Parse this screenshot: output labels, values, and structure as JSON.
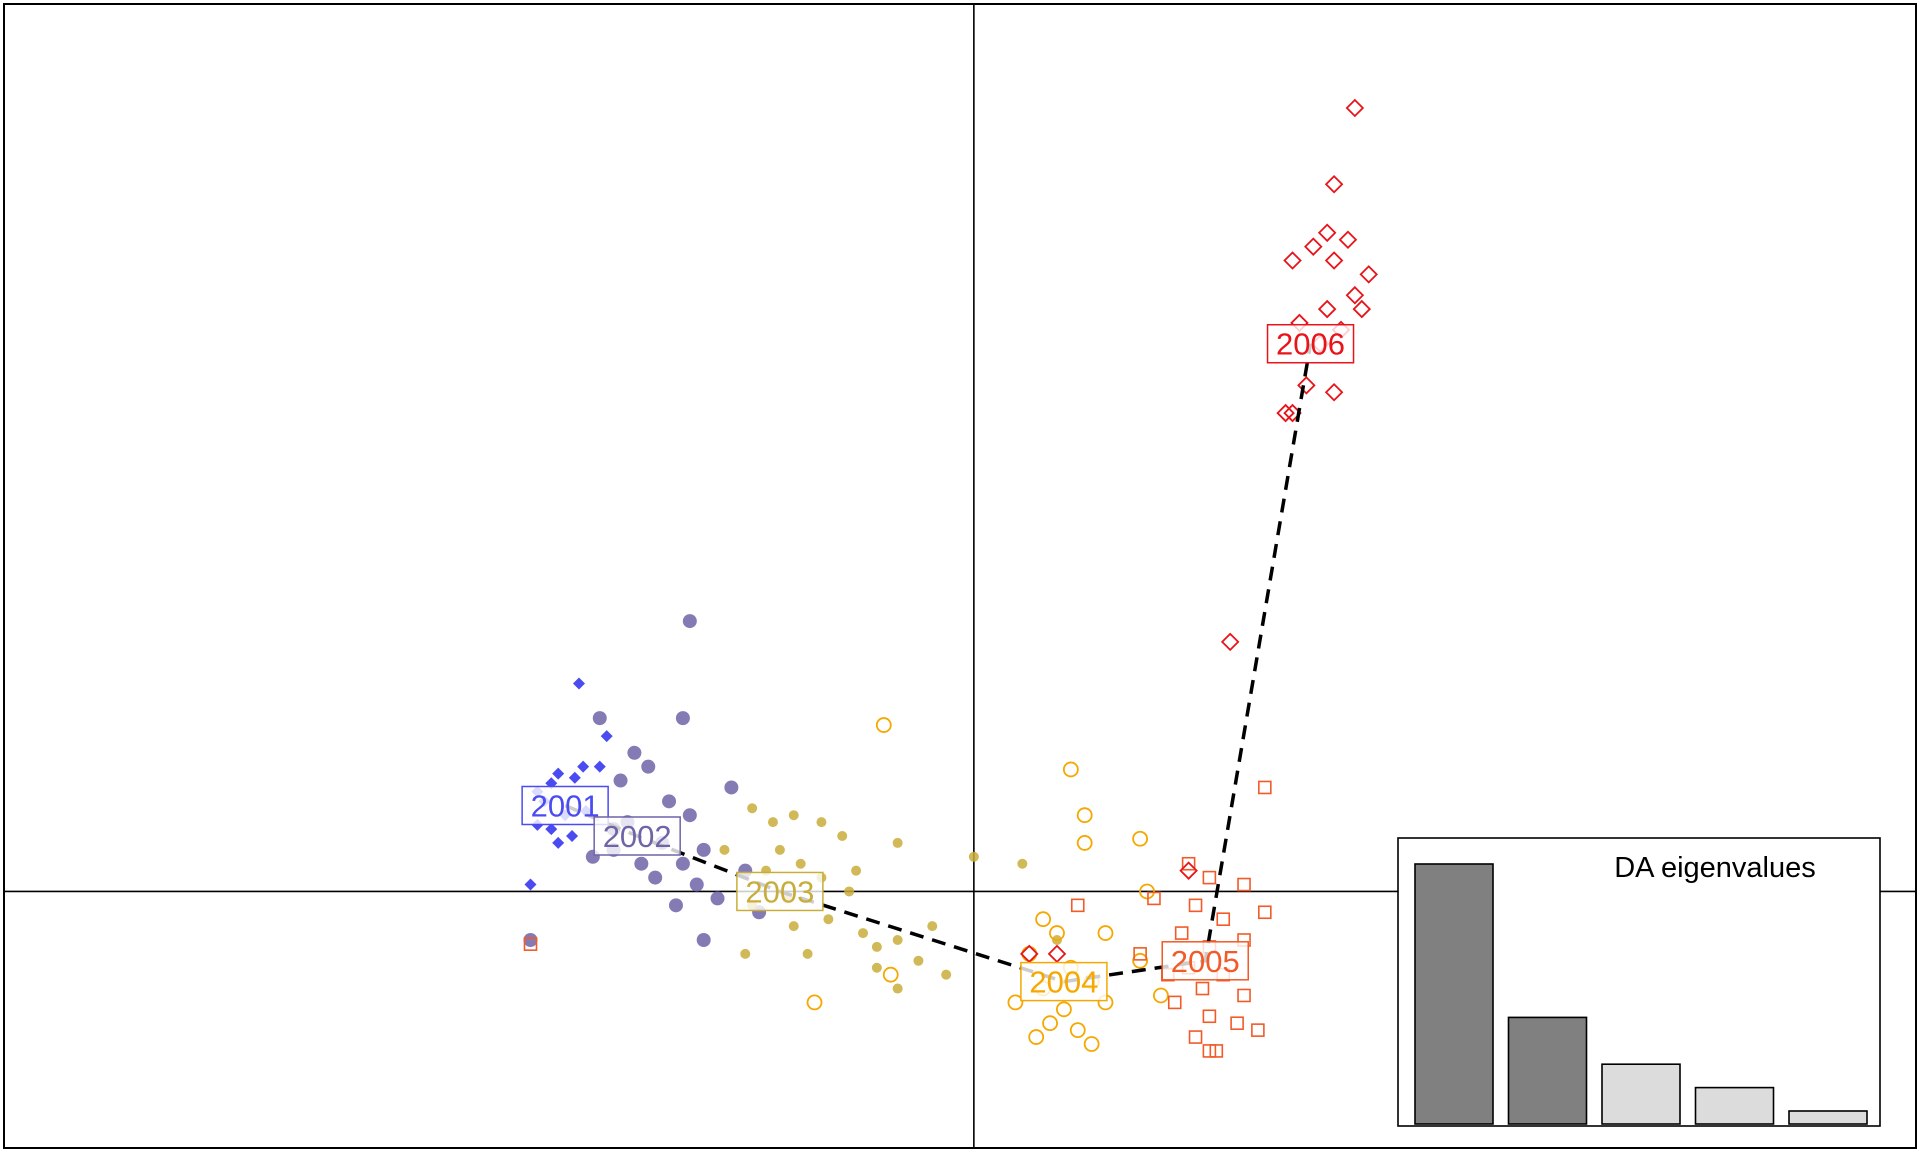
{
  "chart_data": {
    "type": "scatter",
    "title": "",
    "xlabel": "",
    "ylabel": "",
    "xlim": [
      -7.0,
      6.8
    ],
    "ylim": [
      -1.85,
      6.4
    ],
    "grid": false,
    "axes_lines": {
      "x": 0,
      "y": 0
    },
    "trajectory_order": [
      "2001",
      "2002",
      "2003",
      "2004",
      "2005",
      "2006"
    ],
    "series": [
      {
        "name": "2001",
        "color": "#4b4bf2",
        "marker": "diamond-filled",
        "centroid": [
          -2.95,
          0.62
        ],
        "points": [
          [
            -2.85,
            1.5
          ],
          [
            -2.65,
            1.12
          ],
          [
            -2.82,
            0.9
          ],
          [
            -3.0,
            0.85
          ],
          [
            -2.88,
            0.82
          ],
          [
            -3.05,
            0.78
          ],
          [
            -3.15,
            0.72
          ],
          [
            -2.7,
            0.9
          ],
          [
            -3.1,
            0.65
          ],
          [
            -2.95,
            0.55
          ],
          [
            -3.05,
            0.45
          ],
          [
            -2.9,
            0.4
          ],
          [
            -3.15,
            0.48
          ],
          [
            -2.8,
            0.58
          ],
          [
            -3.0,
            0.35
          ],
          [
            -3.2,
            0.05
          ]
        ]
      },
      {
        "name": "2002",
        "color": "#6f64a8",
        "marker": "circle-filled",
        "centroid": [
          -2.43,
          0.4
        ],
        "points": [
          [
            -2.05,
            1.95
          ],
          [
            -2.7,
            1.25
          ],
          [
            -2.1,
            1.25
          ],
          [
            -2.45,
            1.0
          ],
          [
            -2.35,
            0.9
          ],
          [
            -2.55,
            0.8
          ],
          [
            -1.75,
            0.75
          ],
          [
            -2.2,
            0.65
          ],
          [
            -2.05,
            0.55
          ],
          [
            -2.5,
            0.5
          ],
          [
            -2.6,
            0.3
          ],
          [
            -2.25,
            0.35
          ],
          [
            -2.3,
            0.1
          ],
          [
            -2.1,
            0.2
          ],
          [
            -1.95,
            0.3
          ],
          [
            -2.0,
            0.05
          ],
          [
            -1.85,
            -0.05
          ],
          [
            -1.65,
            0.15
          ],
          [
            -2.4,
            0.2
          ],
          [
            -2.15,
            -0.1
          ],
          [
            -1.95,
            -0.35
          ],
          [
            -3.2,
            -0.35
          ],
          [
            -2.75,
            0.25
          ],
          [
            -2.6,
            0.45
          ],
          [
            -1.55,
            -0.15
          ]
        ]
      },
      {
        "name": "2003",
        "color": "#c9ad3a",
        "marker": "circle-filled",
        "centroid": [
          -1.4,
          0.0
        ],
        "points": [
          [
            -1.6,
            0.6
          ],
          [
            -1.3,
            0.55
          ],
          [
            -1.1,
            0.5
          ],
          [
            -0.95,
            0.4
          ],
          [
            -1.4,
            0.3
          ],
          [
            -1.25,
            0.2
          ],
          [
            -1.5,
            0.15
          ],
          [
            -1.1,
            0.1
          ],
          [
            -0.85,
            0.15
          ],
          [
            -1.35,
            -0.05
          ],
          [
            -1.6,
            -0.1
          ],
          [
            -1.05,
            -0.2
          ],
          [
            -0.8,
            -0.3
          ],
          [
            -0.7,
            -0.4
          ],
          [
            -1.3,
            -0.25
          ],
          [
            -1.65,
            -0.45
          ],
          [
            -1.2,
            -0.45
          ],
          [
            -0.55,
            -0.35
          ],
          [
            -0.4,
            -0.5
          ],
          [
            -0.2,
            -0.6
          ],
          [
            -0.7,
            -0.55
          ],
          [
            0.0,
            0.25
          ],
          [
            0.35,
            0.2
          ],
          [
            -0.55,
            0.35
          ],
          [
            -0.9,
            0.0
          ],
          [
            -1.45,
            0.5
          ],
          [
            -1.8,
            0.3
          ],
          [
            -0.3,
            -0.25
          ],
          [
            0.6,
            -0.35
          ],
          [
            -0.55,
            -0.7
          ]
        ]
      },
      {
        "name": "2004",
        "color": "#f5a800",
        "marker": "circle-open",
        "centroid": [
          0.65,
          -0.65
        ],
        "points": [
          [
            -0.65,
            1.2
          ],
          [
            0.7,
            0.88
          ],
          [
            0.8,
            0.55
          ],
          [
            0.8,
            0.35
          ],
          [
            1.2,
            0.38
          ],
          [
            1.25,
            0.0
          ],
          [
            0.5,
            -0.2
          ],
          [
            0.6,
            -0.3
          ],
          [
            0.4,
            -0.45
          ],
          [
            0.7,
            -0.55
          ],
          [
            0.5,
            -0.7
          ],
          [
            0.85,
            -0.65
          ],
          [
            0.65,
            -0.85
          ],
          [
            0.3,
            -0.8
          ],
          [
            0.95,
            -0.8
          ],
          [
            0.55,
            -0.95
          ],
          [
            0.75,
            -1.0
          ],
          [
            0.45,
            -1.05
          ],
          [
            0.85,
            -1.1
          ],
          [
            1.2,
            -0.5
          ],
          [
            1.35,
            -0.75
          ],
          [
            -1.15,
            -0.8
          ],
          [
            -0.6,
            -0.6
          ],
          [
            0.95,
            -0.3
          ]
        ]
      },
      {
        "name": "2005",
        "color": "#f25a28",
        "marker": "square-open",
        "centroid": [
          1.67,
          -0.5
        ],
        "points": [
          [
            2.1,
            0.75
          ],
          [
            1.55,
            0.2
          ],
          [
            1.7,
            0.1
          ],
          [
            1.95,
            0.05
          ],
          [
            1.6,
            -0.1
          ],
          [
            1.8,
            -0.2
          ],
          [
            1.5,
            -0.3
          ],
          [
            1.7,
            -0.4
          ],
          [
            1.95,
            -0.35
          ],
          [
            1.55,
            -0.55
          ],
          [
            1.8,
            -0.6
          ],
          [
            1.65,
            -0.7
          ],
          [
            1.95,
            -0.75
          ],
          [
            1.45,
            -0.8
          ],
          [
            1.7,
            -0.9
          ],
          [
            1.9,
            -0.95
          ],
          [
            2.05,
            -1.0
          ],
          [
            1.6,
            -1.05
          ],
          [
            1.75,
            -1.15
          ],
          [
            1.7,
            -1.15
          ],
          [
            1.4,
            -0.6
          ],
          [
            1.2,
            -0.45
          ],
          [
            2.1,
            -0.15
          ],
          [
            1.3,
            -0.05
          ],
          [
            0.75,
            -0.1
          ],
          [
            -3.2,
            -0.38
          ]
        ]
      },
      {
        "name": "2006",
        "color": "#e8141a",
        "marker": "diamond-open",
        "centroid": [
          2.43,
          3.95
        ],
        "points": [
          [
            2.75,
            5.65
          ],
          [
            2.6,
            5.1
          ],
          [
            2.55,
            4.75
          ],
          [
            2.7,
            4.7
          ],
          [
            2.45,
            4.65
          ],
          [
            2.6,
            4.55
          ],
          [
            2.3,
            4.55
          ],
          [
            2.85,
            4.45
          ],
          [
            2.75,
            4.3
          ],
          [
            2.55,
            4.2
          ],
          [
            2.65,
            4.05
          ],
          [
            2.5,
            3.95
          ],
          [
            2.4,
            3.65
          ],
          [
            2.3,
            3.45
          ],
          [
            2.25,
            3.45
          ],
          [
            2.6,
            3.6
          ],
          [
            1.85,
            1.8
          ],
          [
            1.55,
            0.15
          ],
          [
            0.4,
            -0.45
          ],
          [
            0.6,
            -0.45
          ],
          [
            2.8,
            4.2
          ],
          [
            2.35,
            4.1
          ]
        ]
      }
    ],
    "inset": {
      "type": "bar",
      "title": "DA eigenvalues",
      "values": [
        1.0,
        0.41,
        0.23,
        0.14,
        0.05
      ],
      "retained": 2,
      "retained_color": "#808080",
      "other_color": "#dcdcdc"
    }
  }
}
